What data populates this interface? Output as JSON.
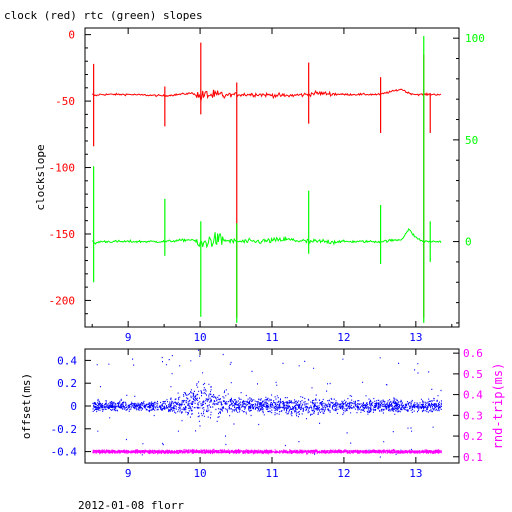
{
  "title": "clock (red) rtc (green) slopes",
  "footer": "2012-01-08 florr",
  "colors": {
    "red": "#ff0000",
    "green": "#00ff00",
    "blue": "#0000ff",
    "magenta": "#ff00ff",
    "axis": "#000000"
  },
  "chart_data": [
    {
      "type": "line",
      "title": "clock (red) rtc (green) slopes",
      "xlabel": "",
      "xlim": [
        8.4,
        13.6
      ],
      "x_ticks": [
        9,
        10,
        11,
        12,
        13
      ],
      "ylabel_left": "clockslope",
      "ylim_left": [
        -220,
        5
      ],
      "y_ticks_left": [
        0,
        -50,
        -100,
        -150,
        -200
      ],
      "ylim_right": [
        -42,
        105
      ],
      "y_ticks_right": [
        100,
        50,
        0
      ],
      "grid": false,
      "series": [
        {
          "name": "clock",
          "axis": "left",
          "color": "#ff0000",
          "x": [
            8.5,
            8.55,
            8.6,
            9.0,
            9.5,
            9.9,
            10.0,
            10.1,
            10.2,
            10.5,
            10.8,
            11.2,
            11.5,
            11.6,
            12.0,
            12.5,
            12.8,
            12.9,
            13.0,
            13.1,
            13.2,
            13.35
          ],
          "values": [
            -45,
            -46,
            -45,
            -45,
            -46,
            -44,
            -47,
            -45,
            -46,
            -45,
            -45,
            -46,
            -45,
            -44,
            -45,
            -45,
            -41,
            -44,
            -45,
            -45,
            -45,
            -45
          ],
          "spikes": [
            {
              "x": 8.52,
              "low": -84,
              "high": -22
            },
            {
              "x": 9.51,
              "low": -69,
              "high": -39
            },
            {
              "x": 10.01,
              "low": -60,
              "high": -6
            },
            {
              "x": 10.51,
              "low": -213,
              "high": -36
            },
            {
              "x": 11.51,
              "low": -67,
              "high": -21
            },
            {
              "x": 12.51,
              "low": -74,
              "high": -32
            },
            {
              "x": 13.11,
              "low": -213,
              "high": -15
            },
            {
              "x": 13.2,
              "low": -74,
              "high": -44
            }
          ]
        },
        {
          "name": "rtc",
          "axis": "right",
          "color": "#00ff00",
          "x": [
            8.5,
            8.55,
            8.6,
            9.0,
            9.5,
            9.9,
            10.0,
            10.1,
            10.2,
            10.5,
            10.8,
            11.2,
            11.5,
            11.6,
            12.0,
            12.5,
            12.8,
            12.9,
            13.0,
            13.1,
            13.2,
            13.35
          ],
          "values": [
            0,
            -1,
            0,
            0,
            0,
            1,
            -2,
            0,
            1,
            0,
            0,
            1,
            0,
            0,
            0,
            0,
            1,
            6,
            2,
            0,
            0,
            0
          ],
          "spikes": [
            {
              "x": 8.52,
              "low": -20,
              "high": 37
            },
            {
              "x": 9.51,
              "low": -7,
              "high": 21
            },
            {
              "x": 10.01,
              "low": -37,
              "high": 10
            },
            {
              "x": 10.51,
              "low": -40,
              "high": 9
            },
            {
              "x": 11.51,
              "low": -6,
              "high": 25
            },
            {
              "x": 12.51,
              "low": -11,
              "high": 18
            },
            {
              "x": 13.11,
              "low": -40,
              "high": 101
            },
            {
              "x": 13.2,
              "low": -10,
              "high": 10
            }
          ]
        }
      ]
    },
    {
      "type": "scatter",
      "xlabel": "",
      "xlim": [
        8.4,
        13.6
      ],
      "x_ticks": [
        9,
        10,
        11,
        12,
        13
      ],
      "ylabel_left": "offset(ms)",
      "ylim_left": [
        -0.5,
        0.5
      ],
      "y_ticks_left": [
        "0.4",
        "0.2",
        "0",
        "-0.2",
        "-0.4"
      ],
      "ylabel_right": "rnd-trip(ms)",
      "ylim_right": [
        0.07,
        0.62
      ],
      "y_ticks_right": [
        "0.6",
        "0.5",
        "0.4",
        "0.3",
        "0.2",
        "0.1"
      ],
      "grid": false,
      "series": [
        {
          "name": "offset",
          "axis": "left",
          "color": "#0000ff",
          "x": [
            8.5,
            9.0,
            9.5,
            9.8,
            10.0,
            10.2,
            10.5,
            11.0,
            11.5,
            12.0,
            12.5,
            13.0,
            13.35
          ],
          "values": [
            0.0,
            0.0,
            0.0,
            0.02,
            0.05,
            0.02,
            0.01,
            0.0,
            0.0,
            0.0,
            0.0,
            0.0,
            0.0
          ],
          "spread": [
            0.05,
            0.04,
            0.05,
            0.1,
            0.2,
            0.12,
            0.08,
            0.07,
            0.08,
            0.06,
            0.06,
            0.06,
            0.06
          ]
        },
        {
          "name": "rnd-trip",
          "axis": "right",
          "color": "#ff00ff",
          "x": [
            8.5,
            9.0,
            9.5,
            10.0,
            10.5,
            11.0,
            11.5,
            12.0,
            12.5,
            13.0,
            13.35
          ],
          "values": [
            0.125,
            0.125,
            0.124,
            0.126,
            0.125,
            0.124,
            0.125,
            0.125,
            0.125,
            0.124,
            0.125
          ],
          "spread": [
            0.008,
            0.008,
            0.008,
            0.009,
            0.008,
            0.008,
            0.008,
            0.008,
            0.008,
            0.008,
            0.008
          ]
        }
      ]
    }
  ]
}
